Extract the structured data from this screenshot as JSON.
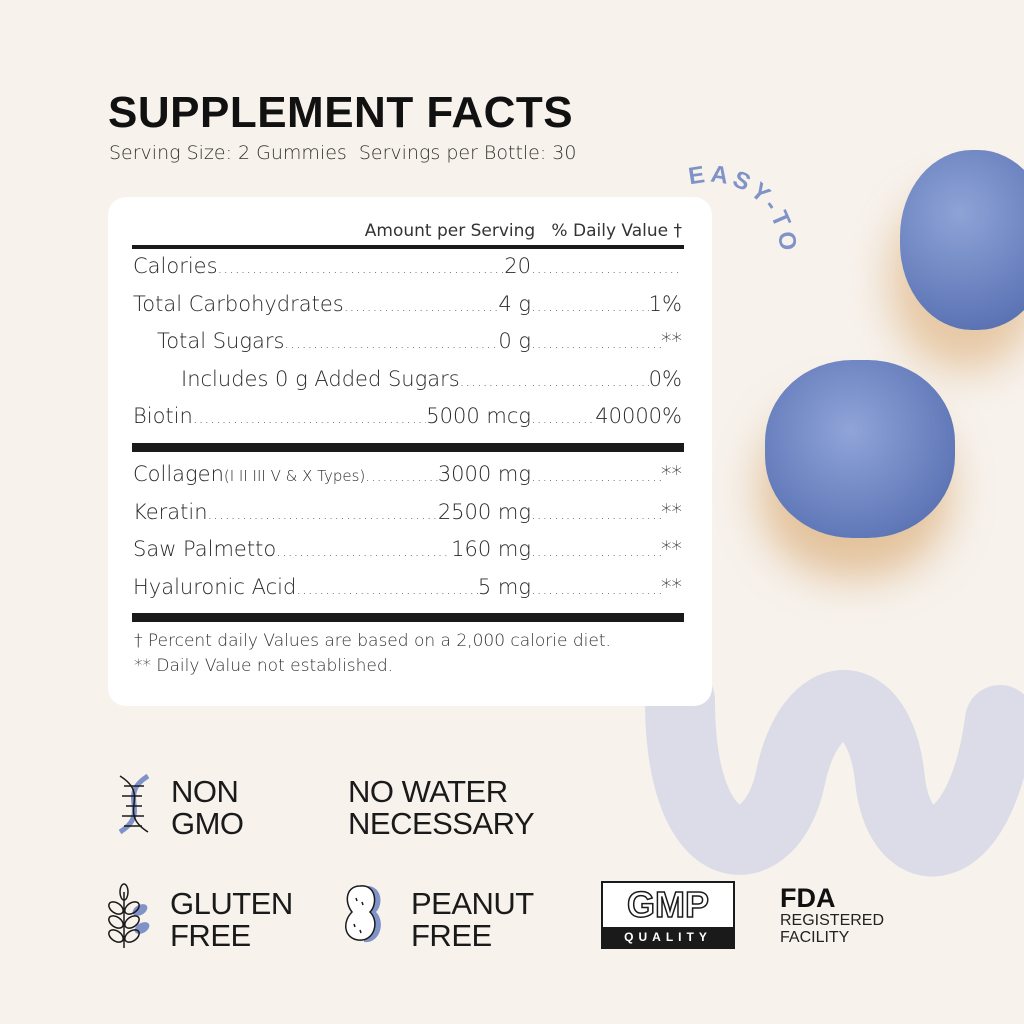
{
  "title": "SUPPLEMENT FACTS",
  "serving": "Serving Size: 2 Gummies  Servings per Bottle: 30",
  "tagline": "EASY-TO-TAKE",
  "table": {
    "header": "Amount per Serving   % Daily Value †",
    "rows_top": [
      {
        "name": "Calories",
        "amount": "20",
        "dv": ""
      },
      {
        "name": "Total Carbohydrates",
        "amount": "4 g",
        "dv": "1%"
      },
      {
        "name": "Total Sugars",
        "amount": "0 g",
        "dv": "**",
        "indent": 1
      },
      {
        "name": "Includes 0 g Added Sugars",
        "amount": "",
        "dv": "0%",
        "indent": 2
      },
      {
        "name": "Biotin",
        "amount": "5000 mcg",
        "dv": "40000%"
      }
    ],
    "rows_bottom": [
      {
        "name": "Collagen",
        "note": "(I II III V & X Types)",
        "amount": "3000 mg",
        "dv": "**"
      },
      {
        "name": "Keratin",
        "amount": "2500 mg",
        "dv": "**"
      },
      {
        "name": "Saw Palmetto",
        "amount": "160 mg",
        "dv": "**"
      },
      {
        "name": "Hyaluronic Acid",
        "amount": "5 mg",
        "dv": "**"
      }
    ],
    "footnotes": [
      "† Percent daily Values are based on a 2,000 calorie diet.",
      "** Daily Value not established."
    ]
  },
  "badges": {
    "non_gmo": [
      "NON",
      "GMO"
    ],
    "no_water": [
      "NO WATER",
      "NECESSARY"
    ],
    "gluten_free": [
      "GLUTEN",
      "FREE"
    ],
    "peanut_free": [
      "PEANUT",
      "FREE"
    ],
    "gmp": {
      "big": "GMP",
      "small": "QUALITY"
    },
    "fda": {
      "big": "FDA",
      "lines": [
        "REGISTERED",
        "FACILITY"
      ]
    }
  },
  "colors": {
    "background": "#f7f2ec",
    "accent": "#8093c9",
    "gummy": "#6d86c4",
    "squiggle": "#dcdce8"
  }
}
